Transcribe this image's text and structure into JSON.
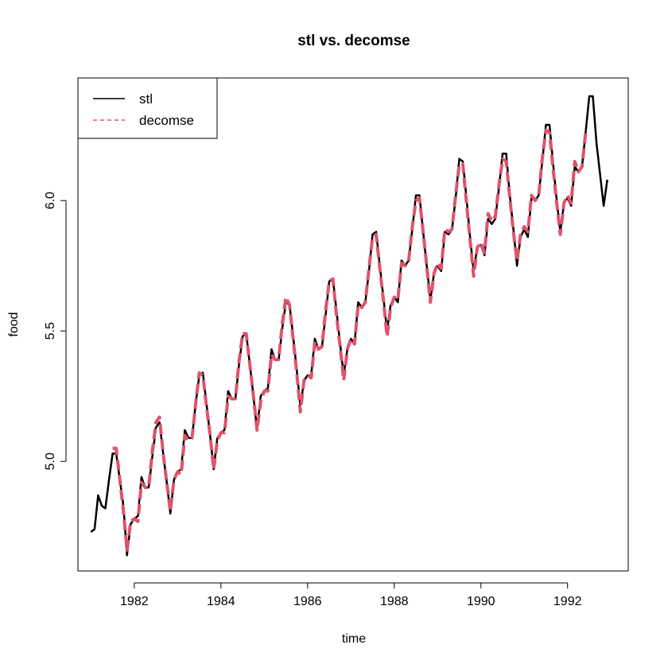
{
  "chart_data": {
    "type": "line",
    "title": "stl vs. decomse",
    "xlabel": "time",
    "ylabel": "food",
    "xlim": [
      1980.7,
      1993.4
    ],
    "ylim": [
      4.58,
      6.47
    ],
    "x_ticks": [
      1982,
      1984,
      1986,
      1988,
      1990,
      1992
    ],
    "y_ticks": [
      5.0,
      5.5,
      6.0
    ],
    "grid": false,
    "legend": {
      "position": "top-left",
      "entries": [
        "stl",
        "decomse"
      ]
    },
    "series": [
      {
        "name": "stl",
        "color": "#000000",
        "style": "solid",
        "x": [
          1981.0,
          1981.083,
          1981.167,
          1981.25,
          1981.333,
          1981.417,
          1981.5,
          1981.583,
          1981.667,
          1981.75,
          1981.833,
          1981.917,
          1982.0,
          1982.083,
          1982.167,
          1982.25,
          1982.333,
          1982.417,
          1982.5,
          1982.583,
          1982.667,
          1982.75,
          1982.833,
          1982.917,
          1983.0,
          1983.083,
          1983.167,
          1983.25,
          1983.333,
          1983.417,
          1983.5,
          1983.583,
          1983.667,
          1983.75,
          1983.833,
          1983.917,
          1984.0,
          1984.083,
          1984.167,
          1984.25,
          1984.333,
          1984.417,
          1984.5,
          1984.583,
          1984.667,
          1984.75,
          1984.833,
          1984.917,
          1985.0,
          1985.083,
          1985.167,
          1985.25,
          1985.333,
          1985.417,
          1985.5,
          1985.583,
          1985.667,
          1985.75,
          1985.833,
          1985.917,
          1986.0,
          1986.083,
          1986.167,
          1986.25,
          1986.333,
          1986.417,
          1986.5,
          1986.583,
          1986.667,
          1986.75,
          1986.833,
          1986.917,
          1987.0,
          1987.083,
          1987.167,
          1987.25,
          1987.333,
          1987.417,
          1987.5,
          1987.583,
          1987.667,
          1987.75,
          1987.833,
          1987.917,
          1988.0,
          1988.083,
          1988.167,
          1988.25,
          1988.333,
          1988.417,
          1988.5,
          1988.583,
          1988.667,
          1988.75,
          1988.833,
          1988.917,
          1989.0,
          1989.083,
          1989.167,
          1989.25,
          1989.333,
          1989.417,
          1989.5,
          1989.583,
          1989.667,
          1989.75,
          1989.833,
          1989.917,
          1990.0,
          1990.083,
          1990.167,
          1990.25,
          1990.333,
          1990.417,
          1990.5,
          1990.583,
          1990.667,
          1990.75,
          1990.833,
          1990.917,
          1991.0,
          1991.083,
          1991.167,
          1991.25,
          1991.333,
          1991.417,
          1991.5,
          1991.583,
          1991.667,
          1991.75,
          1991.833,
          1991.917,
          1992.0,
          1992.083,
          1992.167,
          1992.25,
          1992.333,
          1992.417,
          1992.5,
          1992.583,
          1992.667,
          1992.75,
          1992.833,
          1992.917
        ],
        "values": [
          4.73,
          4.74,
          4.87,
          4.83,
          4.82,
          4.93,
          5.03,
          5.03,
          4.93,
          4.83,
          4.64,
          4.76,
          4.78,
          4.79,
          4.94,
          4.9,
          4.9,
          5.02,
          5.13,
          5.15,
          5.03,
          4.92,
          4.8,
          4.93,
          4.96,
          4.97,
          5.12,
          5.09,
          5.09,
          5.22,
          5.33,
          5.34,
          5.22,
          5.1,
          4.97,
          5.09,
          5.11,
          5.12,
          5.27,
          5.24,
          5.24,
          5.37,
          5.48,
          5.49,
          5.37,
          5.25,
          5.12,
          5.25,
          5.27,
          5.28,
          5.43,
          5.39,
          5.39,
          5.51,
          5.61,
          5.6,
          5.48,
          5.35,
          5.21,
          5.31,
          5.33,
          5.33,
          5.47,
          5.43,
          5.44,
          5.56,
          5.69,
          5.7,
          5.58,
          5.45,
          5.33,
          5.43,
          5.47,
          5.45,
          5.61,
          5.59,
          5.61,
          5.73,
          5.87,
          5.88,
          5.75,
          5.63,
          5.5,
          5.6,
          5.63,
          5.61,
          5.77,
          5.75,
          5.77,
          5.89,
          6.02,
          6.02,
          5.88,
          5.75,
          5.62,
          5.72,
          5.75,
          5.73,
          5.88,
          5.87,
          5.89,
          6.01,
          6.16,
          6.15,
          6.01,
          5.86,
          5.73,
          5.82,
          5.83,
          5.79,
          5.93,
          5.91,
          5.93,
          6.05,
          6.18,
          6.18,
          6.02,
          5.89,
          5.75,
          5.86,
          5.89,
          5.86,
          6.01,
          6.0,
          6.02,
          6.15,
          6.29,
          6.29,
          6.14,
          6.0,
          5.88,
          5.99,
          6.01,
          5.98,
          6.13,
          6.11,
          6.13,
          6.26,
          6.4,
          6.4,
          6.22,
          6.1,
          5.98,
          6.08
        ]
      },
      {
        "name": "decomse",
        "color": "#DF536B",
        "style": "dashed",
        "x": [
          1981.5,
          1981.583,
          1981.667,
          1981.75,
          1981.833,
          1981.917,
          1982.0,
          1982.083,
          1982.167,
          1982.25,
          1982.333,
          1982.417,
          1982.5,
          1982.583,
          1982.667,
          1982.75,
          1982.833,
          1982.917,
          1983.0,
          1983.083,
          1983.167,
          1983.25,
          1983.333,
          1983.417,
          1983.5,
          1983.583,
          1983.667,
          1983.75,
          1983.833,
          1983.917,
          1984.0,
          1984.083,
          1984.167,
          1984.25,
          1984.333,
          1984.417,
          1984.5,
          1984.583,
          1984.667,
          1984.75,
          1984.833,
          1984.917,
          1985.0,
          1985.083,
          1985.167,
          1985.25,
          1985.333,
          1985.417,
          1985.5,
          1985.583,
          1985.667,
          1985.75,
          1985.833,
          1985.917,
          1986.0,
          1986.083,
          1986.167,
          1986.25,
          1986.333,
          1986.417,
          1986.5,
          1986.583,
          1986.667,
          1986.75,
          1986.833,
          1986.917,
          1987.0,
          1987.083,
          1987.167,
          1987.25,
          1987.333,
          1987.417,
          1987.5,
          1987.583,
          1987.667,
          1987.75,
          1987.833,
          1987.917,
          1988.0,
          1988.083,
          1988.167,
          1988.25,
          1988.333,
          1988.417,
          1988.5,
          1988.583,
          1988.667,
          1988.75,
          1988.833,
          1988.917,
          1989.0,
          1989.083,
          1989.167,
          1989.25,
          1989.333,
          1989.417,
          1989.5,
          1989.583,
          1989.667,
          1989.75,
          1989.833,
          1989.917,
          1990.0,
          1990.083,
          1990.167,
          1990.25,
          1990.333,
          1990.417,
          1990.5,
          1990.583,
          1990.667,
          1990.75,
          1990.833,
          1990.917,
          1991.0,
          1991.083,
          1991.167,
          1991.25,
          1991.333,
          1991.417,
          1991.5,
          1991.583,
          1991.667,
          1991.75,
          1991.833,
          1991.917,
          1992.0,
          1992.083,
          1992.167,
          1992.25,
          1992.333,
          1992.417,
          1992.5
        ],
        "values": [
          5.05,
          5.05,
          4.93,
          4.81,
          4.66,
          4.77,
          4.78,
          4.77,
          4.92,
          4.9,
          4.9,
          5.04,
          5.15,
          5.17,
          5.03,
          4.92,
          4.81,
          4.93,
          4.96,
          4.95,
          5.1,
          5.08,
          5.09,
          5.22,
          5.34,
          5.33,
          5.21,
          5.1,
          4.97,
          5.08,
          5.11,
          5.11,
          5.25,
          5.24,
          5.24,
          5.38,
          5.49,
          5.49,
          5.37,
          5.25,
          5.12,
          5.23,
          5.27,
          5.27,
          5.41,
          5.39,
          5.39,
          5.53,
          5.63,
          5.6,
          5.47,
          5.34,
          5.19,
          5.31,
          5.33,
          5.32,
          5.46,
          5.43,
          5.44,
          5.58,
          5.69,
          5.7,
          5.56,
          5.44,
          5.31,
          5.43,
          5.47,
          5.45,
          5.6,
          5.59,
          5.61,
          5.74,
          5.86,
          5.87,
          5.74,
          5.62,
          5.48,
          5.59,
          5.63,
          5.62,
          5.76,
          5.75,
          5.77,
          5.9,
          6.0,
          6.01,
          5.88,
          5.75,
          5.61,
          5.72,
          5.76,
          5.74,
          5.89,
          5.88,
          5.89,
          6.02,
          6.14,
          6.14,
          5.99,
          5.85,
          5.71,
          5.82,
          5.84,
          5.8,
          5.95,
          5.92,
          5.94,
          6.06,
          6.16,
          6.15,
          6.01,
          5.88,
          5.77,
          5.87,
          5.9,
          5.88,
          6.02,
          6.0,
          6.02,
          6.16,
          6.27,
          6.26,
          6.12,
          5.99,
          5.87,
          5.99,
          6.02,
          5.99,
          6.15,
          6.11,
          6.13,
          6.26,
          6.26
        ]
      }
    ]
  }
}
